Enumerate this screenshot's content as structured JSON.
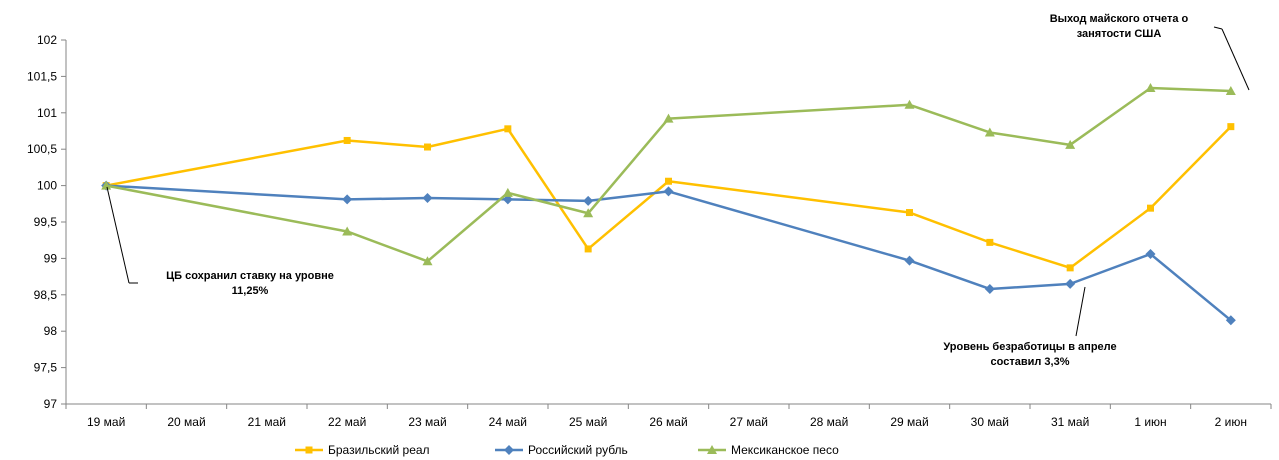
{
  "chart_data": {
    "type": "line",
    "title": "",
    "xlabel": "",
    "ylabel": "",
    "categories": [
      "19 май",
      "20 май",
      "21 май",
      "22 май",
      "23 май",
      "24 май",
      "25 май",
      "26 май",
      "27 май",
      "28 май",
      "29 май",
      "30 май",
      "31 май",
      "1 июн",
      "2 июн"
    ],
    "ylim": [
      97,
      102
    ],
    "yticks": [
      "97",
      "97,5",
      "98",
      "98,5",
      "99",
      "99,5",
      "100",
      "100,5",
      "101",
      "101,5",
      "102"
    ],
    "grid": false,
    "legend_position": "bottom",
    "series": [
      {
        "name": "Бразильский реал",
        "color": "#FFC000",
        "marker": "square",
        "values": [
          100,
          null,
          null,
          100.62,
          100.53,
          100.78,
          99.13,
          100.06,
          null,
          null,
          99.63,
          99.22,
          98.87,
          99.69,
          100.81
        ]
      },
      {
        "name": "Российский рубль",
        "color": "#4F81BD",
        "marker": "diamond",
        "values": [
          100,
          null,
          null,
          99.81,
          99.83,
          99.81,
          99.79,
          99.92,
          null,
          null,
          98.97,
          98.58,
          98.65,
          99.06,
          98.15
        ]
      },
      {
        "name": "Мексиканское песо",
        "color": "#9BBB59",
        "marker": "triangle",
        "values": [
          100,
          null,
          null,
          99.37,
          98.96,
          99.9,
          99.62,
          100.92,
          null,
          null,
          101.11,
          100.73,
          100.56,
          101.34,
          101.3
        ]
      }
    ],
    "annotations": [
      {
        "lines": [
          "Выход майского отчета о",
          "занятости США"
        ]
      },
      {
        "lines": [
          "ЦБ сохранил ставку на уровне",
          "11,25%"
        ]
      },
      {
        "lines": [
          "Уровень безработицы в апреле",
          "составил 3,3%"
        ]
      }
    ]
  }
}
